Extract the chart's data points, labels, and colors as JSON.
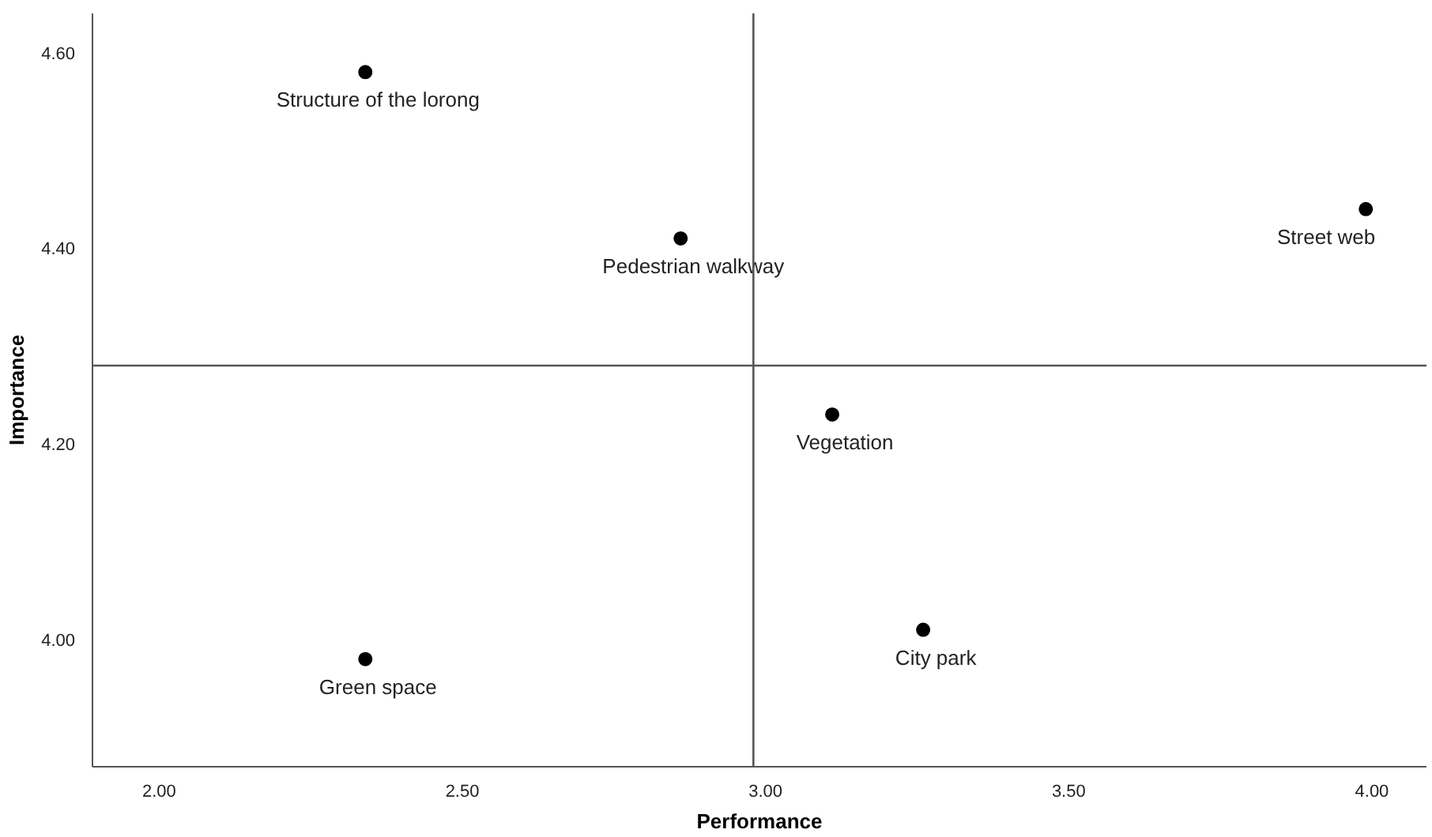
{
  "chart_data": {
    "type": "scatter",
    "xlabel": "Performance",
    "ylabel": "Importance",
    "x": [
      2.34,
      2.86,
      3.99,
      3.11,
      2.34,
      3.26
    ],
    "series": [
      {
        "color": "#000000",
        "values": [
          4.58,
          4.41,
          4.44,
          4.23,
          3.98,
          4.01
        ]
      }
    ],
    "marker": "circle",
    "xlim": [
      1.89,
      4.09
    ],
    "xticks": [
      {
        "value": 2,
        "label": "2.00"
      },
      {
        "value": 2.5,
        "label": "2.50"
      },
      {
        "value": 3,
        "label": "3.00"
      },
      {
        "value": 3.5,
        "label": "3.50"
      },
      {
        "value": 4,
        "label": "4.00"
      }
    ],
    "ylim": [
      3.87,
      4.64
    ],
    "yticks": [
      {
        "value": 4,
        "label": "4.00"
      },
      {
        "value": 4.2,
        "label": "4.20"
      },
      {
        "value": 4.4,
        "label": "4.40"
      },
      {
        "value": 4.6,
        "label": "4.60"
      }
    ],
    "ref_lines": [
      {
        "axis": "x",
        "value": 2.98,
        "color": "#555555"
      },
      {
        "axis": "y",
        "value": 4.28,
        "color": "#555555"
      }
    ],
    "annotations": [
      {
        "text": "Structure of the lorong",
        "x": 2.34,
        "y": 4.58
      },
      {
        "text": "Pedestrian walkway",
        "x": 2.86,
        "y": 4.41
      },
      {
        "text": "Street web",
        "x": 3.99,
        "y": 4.44
      },
      {
        "text": "Vegetation",
        "x": 3.11,
        "y": 4.23
      },
      {
        "text": "Green space",
        "x": 2.34,
        "y": 3.98
      },
      {
        "text": "City park",
        "x": 3.26,
        "y": 4.01
      }
    ],
    "grid": false
  }
}
